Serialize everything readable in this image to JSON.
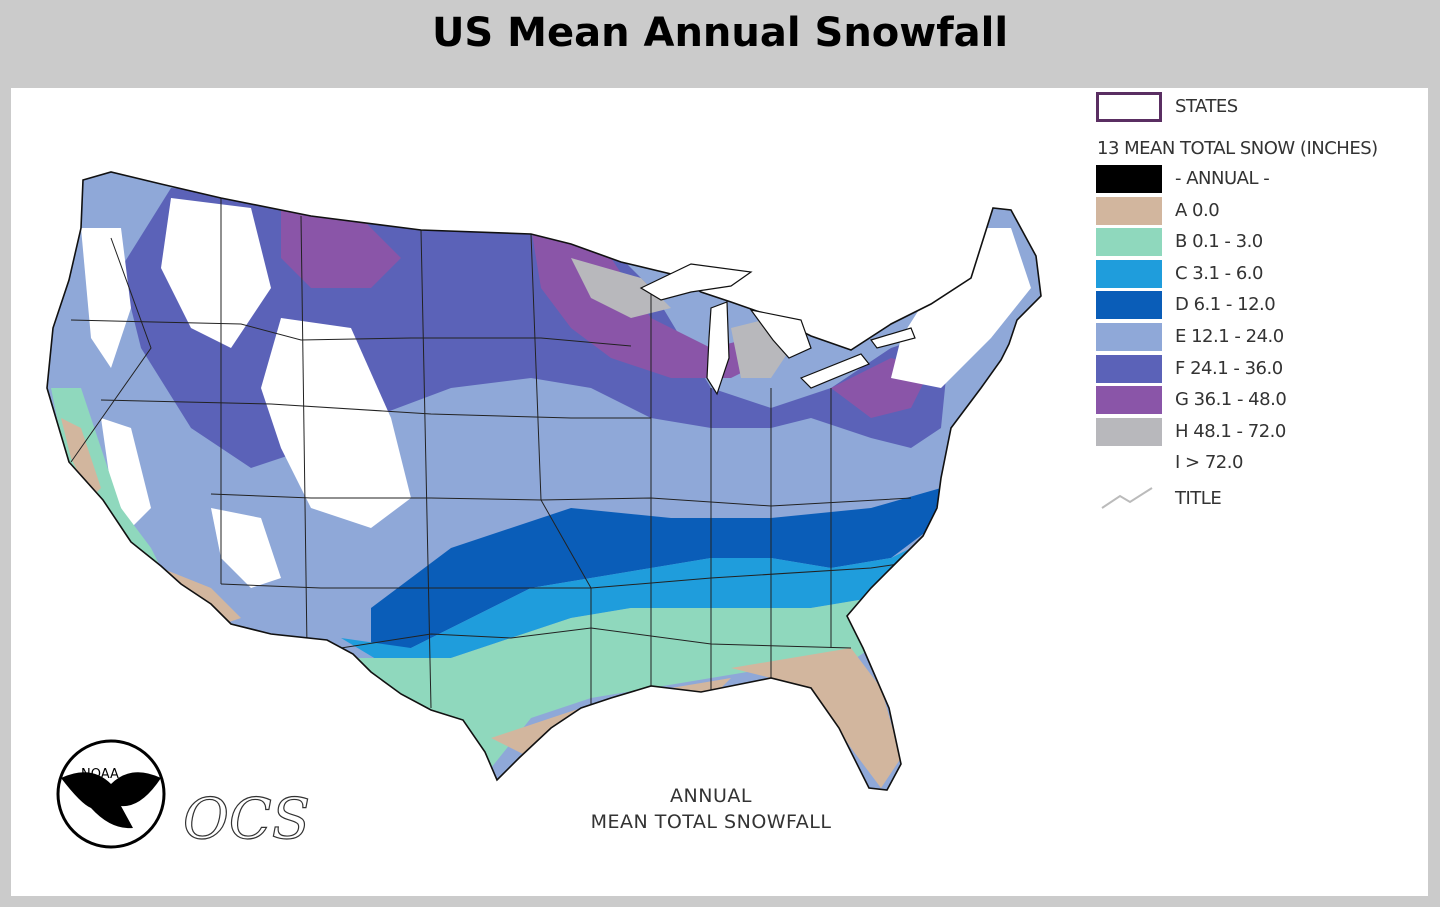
{
  "page": {
    "title": "US Mean Annual Snowfall"
  },
  "legend": {
    "states_label": "STATES",
    "heading": "13 MEAN TOTAL SNOW (INCHES)",
    "items": [
      {
        "label": "- ANNUAL -",
        "color": "#000000"
      },
      {
        "label": "A 0.0",
        "color": "#d2b69e"
      },
      {
        "label": "B 0.1 - 3.0",
        "color": "#8fd8bd"
      },
      {
        "label": "C 3.1 - 6.0",
        "color": "#1f9ddc"
      },
      {
        "label": "D 6.1 - 12.0",
        "color": "#0a5db8"
      },
      {
        "label": "E 12.1 - 24.0",
        "color": "#8fa8d8"
      },
      {
        "label": "F 24.1 - 36.0",
        "color": "#5b62b8"
      },
      {
        "label": "G 36.1 - 48.0",
        "color": "#8a55a8"
      },
      {
        "label": "H 48.1 - 72.0",
        "color": "#b8b8bc"
      },
      {
        "label": "I > 72.0",
        "color": "#ffffff"
      }
    ],
    "title_label": "TITLE"
  },
  "map": {
    "caption_line1": "ANNUAL",
    "caption_line2": "MEAN TOTAL SNOWFALL",
    "logo_noaa": "NOAA",
    "logo_ocs": "OCS"
  }
}
